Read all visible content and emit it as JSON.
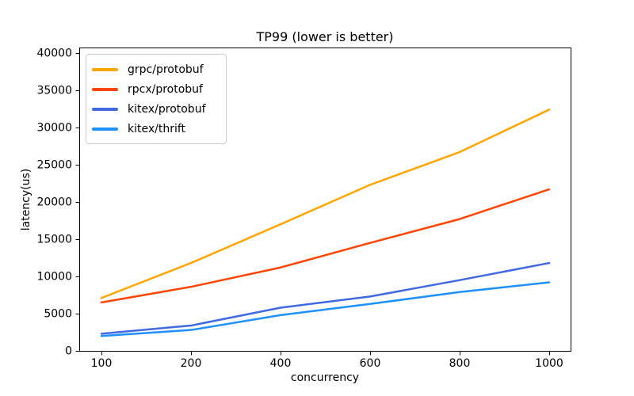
{
  "chart_data": {
    "type": "line",
    "title": "TP99 (lower is better)",
    "xlabel": "concurrency",
    "ylabel": "latency(us)",
    "categories": [
      100,
      200,
      400,
      600,
      800,
      1000
    ],
    "yticks": [
      0,
      5000,
      10000,
      15000,
      20000,
      25000,
      30000,
      35000,
      40000
    ],
    "ylim": [
      0,
      40700
    ],
    "grid": false,
    "legend_position": "upper-left",
    "axis_color": "#000000",
    "series": [
      {
        "name": "grpc/protobuf",
        "color": "#FFA500",
        "values": [
          7100,
          11800,
          17000,
          22300,
          26700,
          32400
        ]
      },
      {
        "name": "rpcx/protobuf",
        "color": "#FF4500",
        "values": [
          6500,
          8600,
          11200,
          14500,
          17700,
          21700
        ]
      },
      {
        "name": "kitex/protobuf",
        "color": "#4169E1",
        "values": [
          2300,
          3400,
          5800,
          7300,
          9500,
          11800
        ]
      },
      {
        "name": "kitex/thrift",
        "color": "#1E90FF",
        "values": [
          2000,
          2800,
          4800,
          6300,
          7900,
          9200
        ]
      }
    ]
  }
}
